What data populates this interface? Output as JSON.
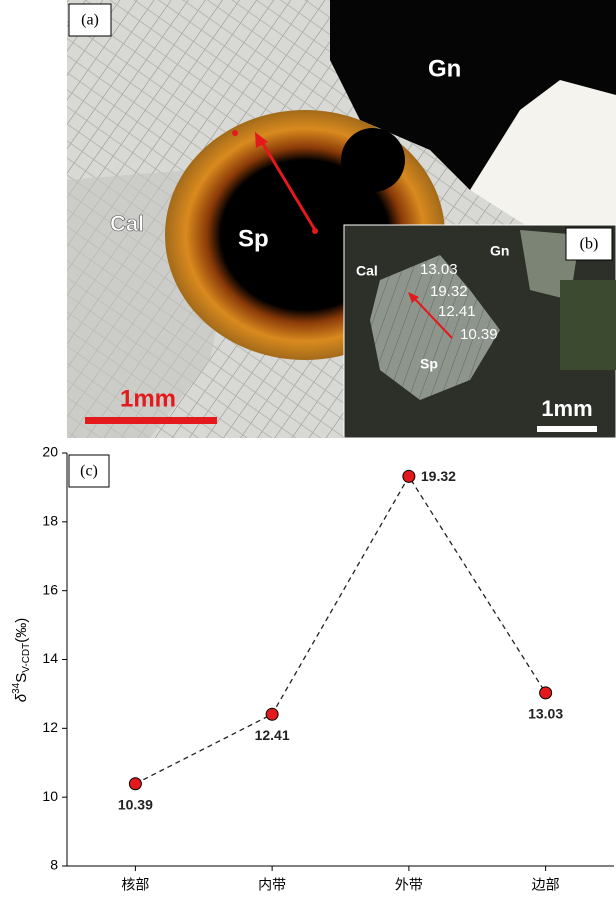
{
  "photos": {
    "a": {
      "panel_label": "(a)",
      "labels": [
        "Gn",
        "Cal",
        "Sp"
      ],
      "scale": "1mm"
    },
    "b": {
      "panel_label": "(b)",
      "labels": [
        "Gn",
        "Cal",
        "Sp"
      ],
      "points": [
        "13.03",
        "19.32",
        "12.41",
        "10.39"
      ],
      "scale": "1mm"
    }
  },
  "chart_data": {
    "type": "line",
    "panel_label": "(c)",
    "ylabel": {
      "prefix": "δ",
      "sup": "34",
      "main": "S",
      "sub": "V-CDT",
      "suffix": "(‰)"
    },
    "categories": [
      "核部",
      "内带",
      "外带",
      "边部"
    ],
    "values": [
      10.39,
      12.41,
      19.32,
      13.03
    ],
    "color": "#e3191b",
    "ylim": [
      8,
      20
    ],
    "yticks": [
      8,
      10,
      12,
      14,
      16,
      18,
      20
    ],
    "grid": false
  }
}
